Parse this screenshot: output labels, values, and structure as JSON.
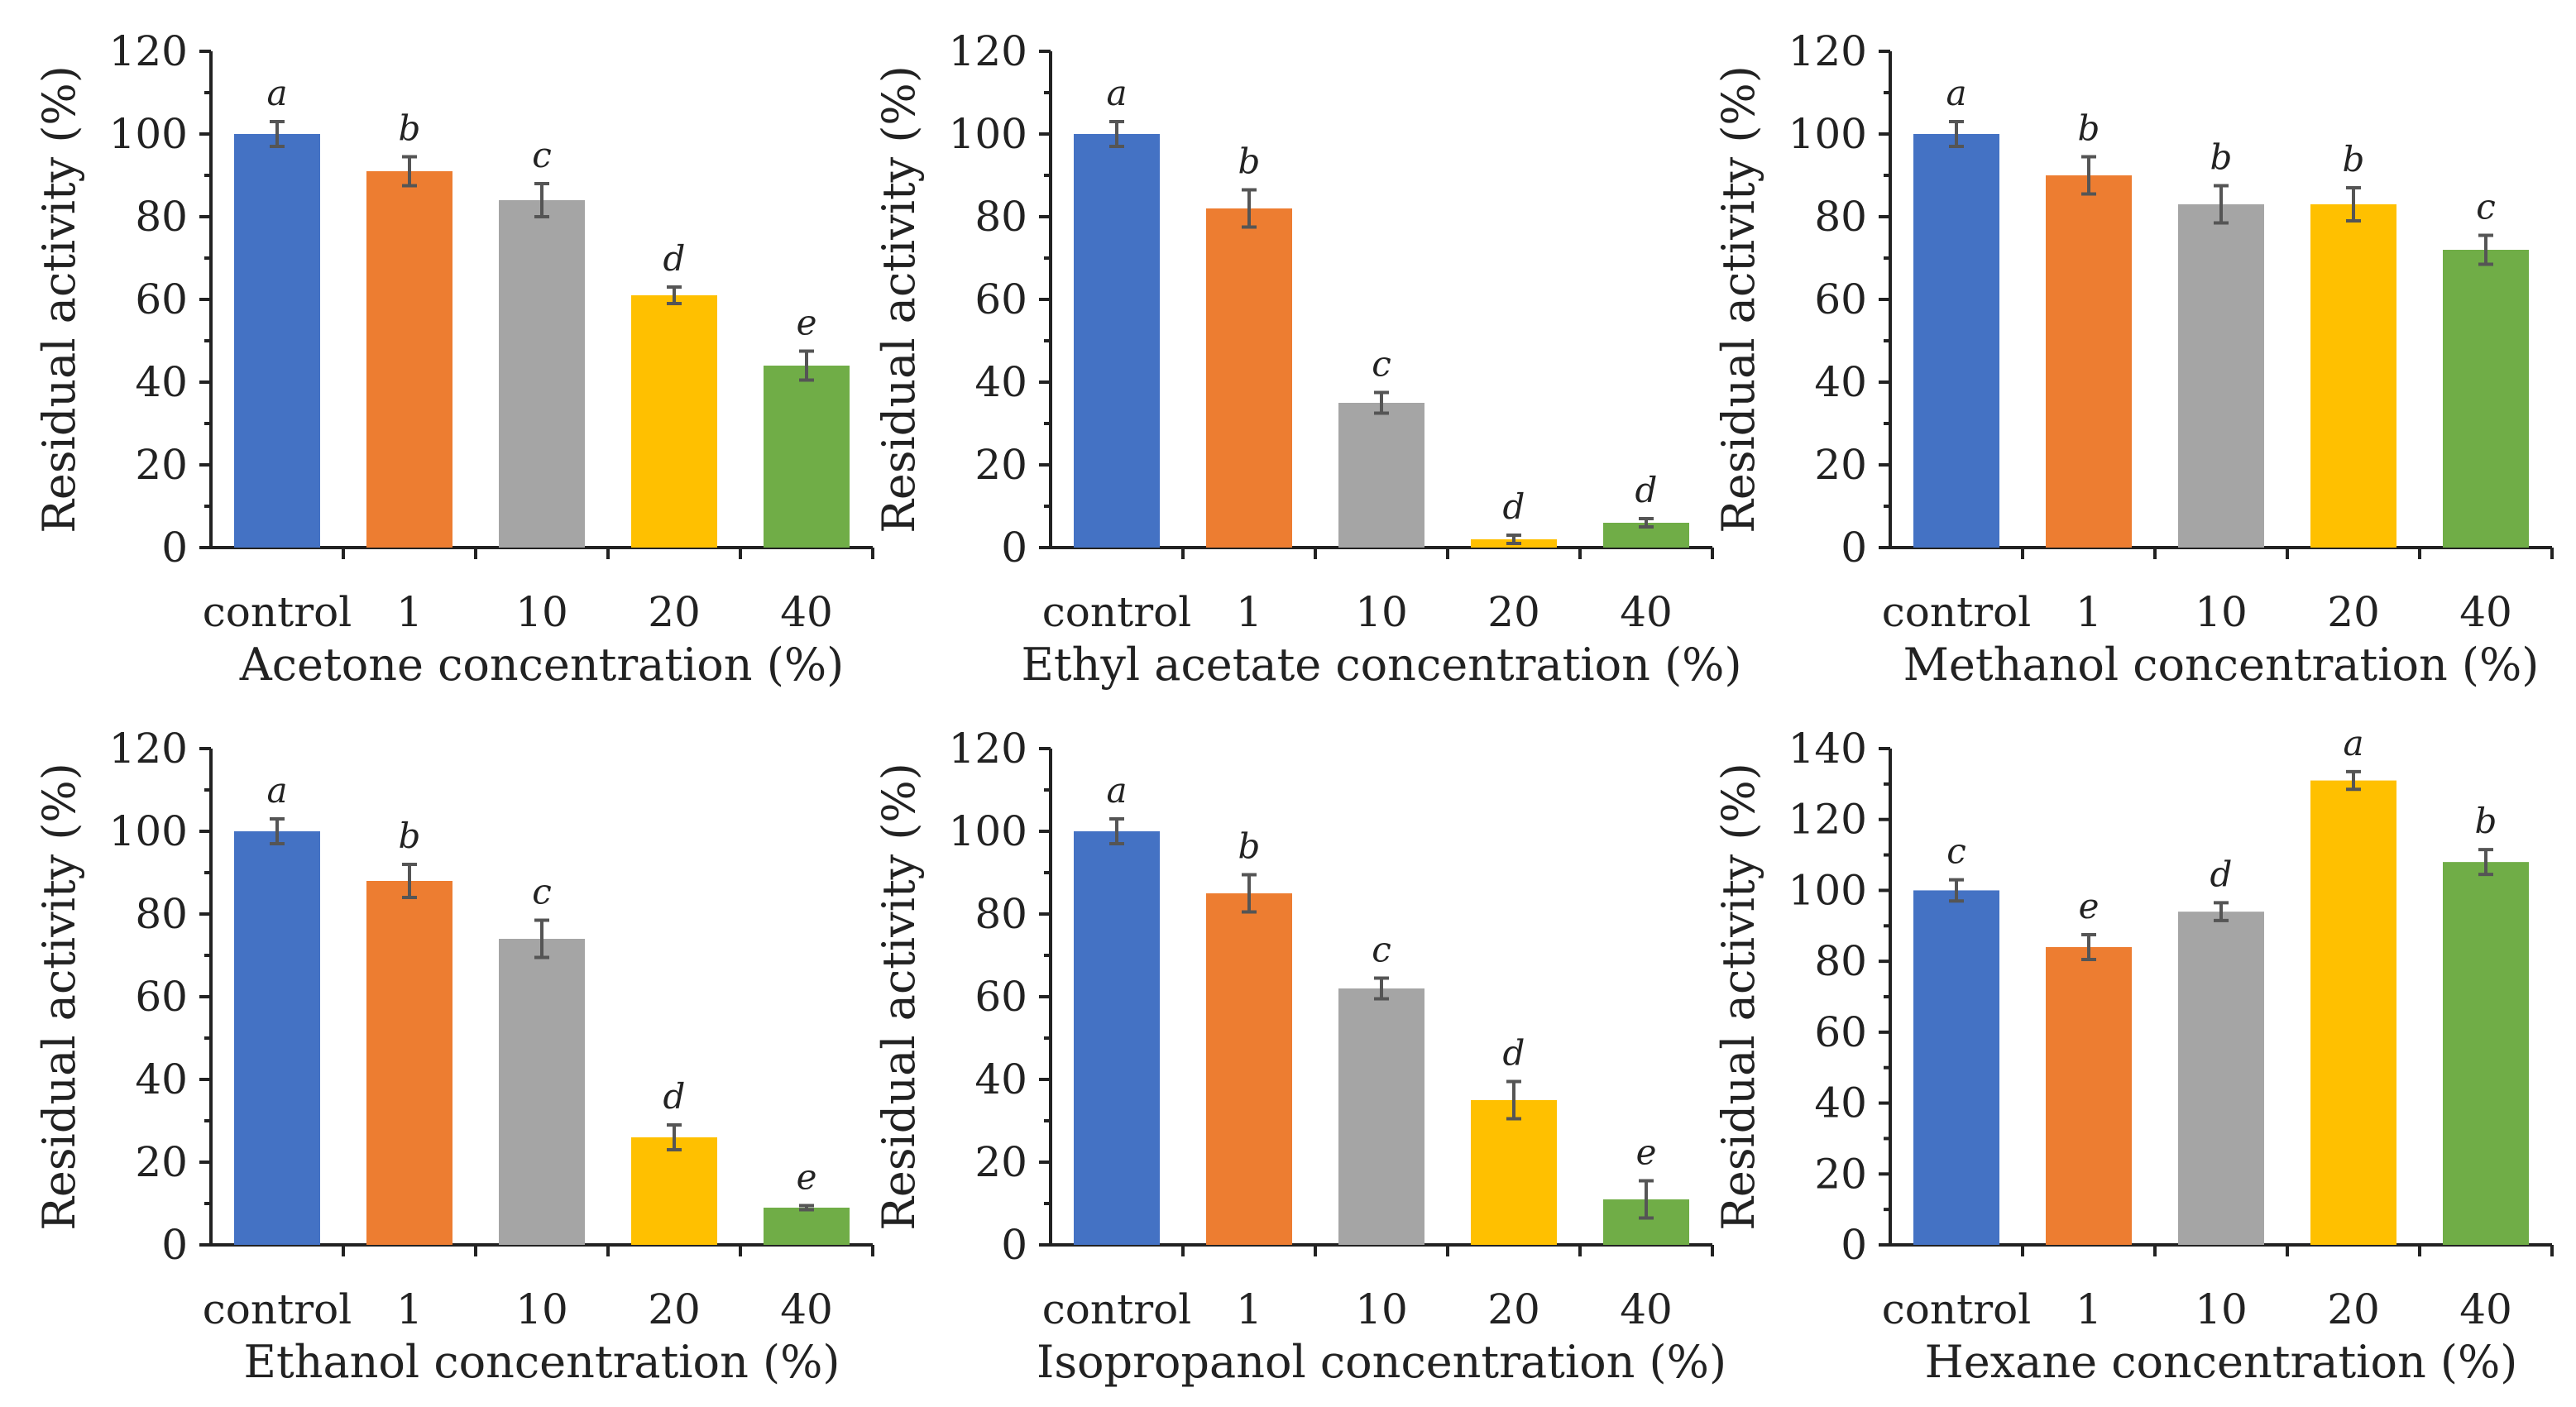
{
  "chart_data": [
    {
      "type": "bar",
      "title": "",
      "xlabel": "Acetone concentration (%)",
      "ylabel": "Residual activity (%)",
      "ylim": [
        0,
        120
      ],
      "yticks": [
        0,
        20,
        40,
        60,
        80,
        100,
        120
      ],
      "categories": [
        "control",
        "1",
        "10",
        "20",
        "40"
      ],
      "values": [
        100,
        91,
        84,
        61,
        44
      ],
      "errors": [
        3,
        3.5,
        4,
        2,
        3.5
      ],
      "letters": [
        "a",
        "b",
        "c",
        "d",
        "e"
      ],
      "colors": [
        "#4472c4",
        "#ed7d31",
        "#a5a5a5",
        "#ffc000",
        "#70ad47"
      ]
    },
    {
      "type": "bar",
      "title": "",
      "xlabel": "Ethyl acetate concentration (%)",
      "ylabel": "Residual activity (%)",
      "ylim": [
        0,
        120
      ],
      "yticks": [
        0,
        20,
        40,
        60,
        80,
        100,
        120
      ],
      "categories": [
        "control",
        "1",
        "10",
        "20",
        "40"
      ],
      "values": [
        100,
        82,
        35,
        2,
        6
      ],
      "errors": [
        3,
        4.5,
        2.5,
        1,
        1
      ],
      "letters": [
        "a",
        "b",
        "c",
        "d",
        "d"
      ],
      "colors": [
        "#4472c4",
        "#ed7d31",
        "#a5a5a5",
        "#ffc000",
        "#70ad47"
      ]
    },
    {
      "type": "bar",
      "title": "",
      "xlabel": "Methanol concentration (%)",
      "ylabel": "Residual activity (%)",
      "ylim": [
        0,
        120
      ],
      "yticks": [
        0,
        20,
        40,
        60,
        80,
        100,
        120
      ],
      "categories": [
        "control",
        "1",
        "10",
        "20",
        "40"
      ],
      "values": [
        100,
        90,
        83,
        83,
        72
      ],
      "errors": [
        3,
        4.5,
        4.5,
        4,
        3.5
      ],
      "letters": [
        "a",
        "b",
        "b",
        "b",
        "c"
      ],
      "colors": [
        "#4472c4",
        "#ed7d31",
        "#a5a5a5",
        "#ffc000",
        "#70ad47"
      ]
    },
    {
      "type": "bar",
      "title": "",
      "xlabel": "Ethanol concentration (%)",
      "ylabel": "Residual activity (%)",
      "ylim": [
        0,
        120
      ],
      "yticks": [
        0,
        20,
        40,
        60,
        80,
        100,
        120
      ],
      "categories": [
        "control",
        "1",
        "10",
        "20",
        "40"
      ],
      "values": [
        100,
        88,
        74,
        26,
        9
      ],
      "errors": [
        3,
        4,
        4.5,
        3,
        0.5
      ],
      "letters": [
        "a",
        "b",
        "c",
        "d",
        "e"
      ],
      "colors": [
        "#4472c4",
        "#ed7d31",
        "#a5a5a5",
        "#ffc000",
        "#70ad47"
      ]
    },
    {
      "type": "bar",
      "title": "",
      "xlabel": "Isopropanol concentration (%)",
      "ylabel": "Residual activity (%)",
      "ylim": [
        0,
        120
      ],
      "yticks": [
        0,
        20,
        40,
        60,
        80,
        100,
        120
      ],
      "categories": [
        "control",
        "1",
        "10",
        "20",
        "40"
      ],
      "values": [
        100,
        85,
        62,
        35,
        11
      ],
      "errors": [
        3,
        4.5,
        2.5,
        4.5,
        4.5
      ],
      "letters": [
        "a",
        "b",
        "c",
        "d",
        "e"
      ],
      "colors": [
        "#4472c4",
        "#ed7d31",
        "#a5a5a5",
        "#ffc000",
        "#70ad47"
      ]
    },
    {
      "type": "bar",
      "title": "",
      "xlabel": "Hexane concentration (%)",
      "ylabel": "Residual activity (%)",
      "ylim": [
        0,
        140
      ],
      "yticks": [
        0,
        20,
        40,
        60,
        80,
        100,
        120,
        140
      ],
      "categories": [
        "control",
        "1",
        "10",
        "20",
        "40"
      ],
      "values": [
        100,
        84,
        94,
        131,
        108
      ],
      "errors": [
        3,
        3.5,
        2.5,
        2.5,
        3.5
      ],
      "letters": [
        "c",
        "e",
        "d",
        "a",
        "b"
      ],
      "colors": [
        "#4472c4",
        "#ed7d31",
        "#a5a5a5",
        "#ffc000",
        "#70ad47"
      ]
    }
  ]
}
